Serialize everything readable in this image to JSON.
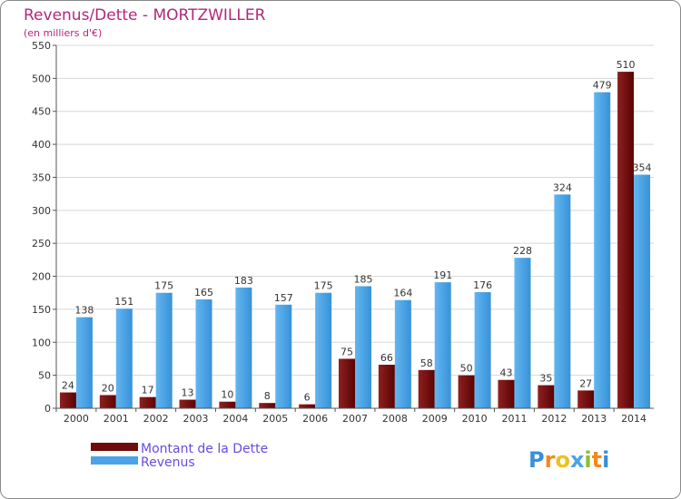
{
  "chart_data": {
    "type": "bar",
    "title": "Revenus/Dette - MORTZWILLER",
    "subtitle": "(en milliers d'€)",
    "categories": [
      "2000",
      "2001",
      "2002",
      "2003",
      "2004",
      "2005",
      "2006",
      "2007",
      "2008",
      "2009",
      "2010",
      "2011",
      "2012",
      "2013",
      "2014"
    ],
    "series": [
      {
        "name": "Montant de la Dette",
        "color": "#6e0b0b",
        "values": [
          24,
          20,
          17,
          13,
          10,
          8,
          6,
          75,
          66,
          58,
          50,
          43,
          35,
          27,
          510
        ]
      },
      {
        "name": "Revenus",
        "color": "#4aa3e6",
        "values": [
          138,
          151,
          175,
          165,
          183,
          157,
          175,
          185,
          164,
          191,
          176,
          228,
          324,
          479,
          354
        ]
      }
    ],
    "ylim": [
      0,
      550
    ],
    "yticks": [
      0,
      50,
      100,
      150,
      200,
      250,
      300,
      350,
      400,
      450,
      500,
      550
    ],
    "grid": true,
    "xlabel": "",
    "ylabel": "",
    "legend_position": "bottom-left"
  },
  "branding": {
    "logo_text": "Proxiti",
    "logo_letters": [
      "P",
      "r",
      "o",
      "x",
      "i",
      "t",
      "i"
    ]
  }
}
